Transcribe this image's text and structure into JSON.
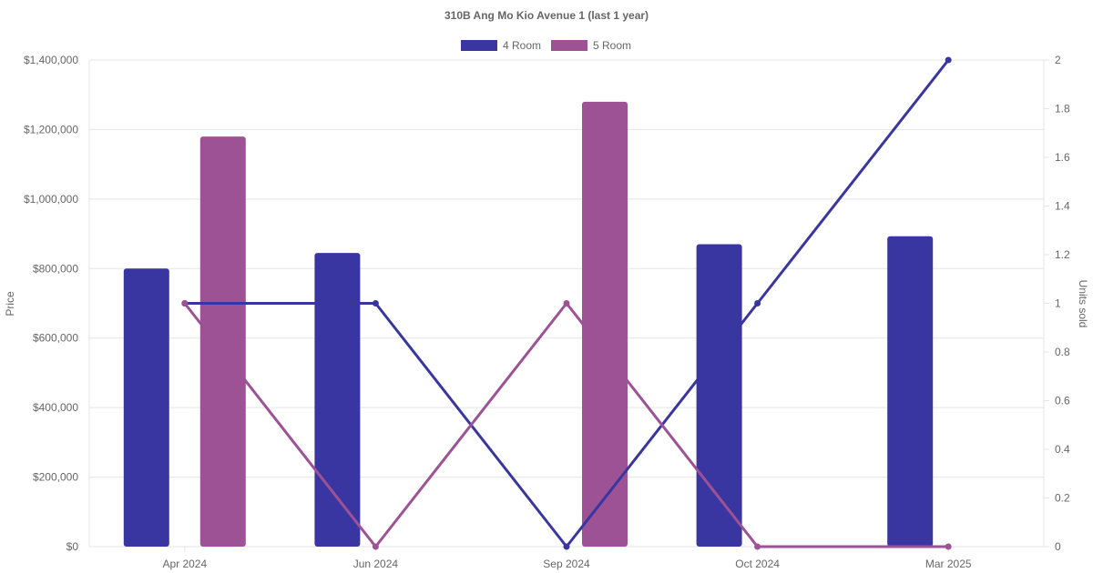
{
  "chart_data": {
    "type": "bar",
    "title": "310B Ang Mo Kio Avenue 1 (last 1 year)",
    "categories": [
      "Apr 2024",
      "Jun 2024",
      "Sep 2024",
      "Oct 2024",
      "Mar 2025"
    ],
    "ylabel": "Price",
    "y2label": "Units sold",
    "ylim": [
      0,
      1400000
    ],
    "y2lim": [
      0,
      2
    ],
    "y_ticks": [
      "$0",
      "$200,000",
      "$400,000",
      "$600,000",
      "$800,000",
      "$1,000,000",
      "$1,200,000",
      "$1,400,000"
    ],
    "y2_ticks": [
      "0",
      "0.2",
      "0.4",
      "0.6",
      "0.8",
      "1",
      "1.2",
      "1.4",
      "1.6",
      "1.8",
      "2"
    ],
    "grid": true,
    "legend_position": "top-center",
    "series": [
      {
        "name": "4 Room",
        "color": "#3a36a1",
        "price": [
          800000,
          845000,
          null,
          870000,
          893000
        ],
        "units": [
          1,
          1,
          0,
          1,
          2
        ]
      },
      {
        "name": "5 Room",
        "color": "#9e5296",
        "price": [
          1180000,
          null,
          1280000,
          null,
          null
        ],
        "units": [
          1,
          0,
          1,
          0,
          0
        ]
      }
    ]
  }
}
